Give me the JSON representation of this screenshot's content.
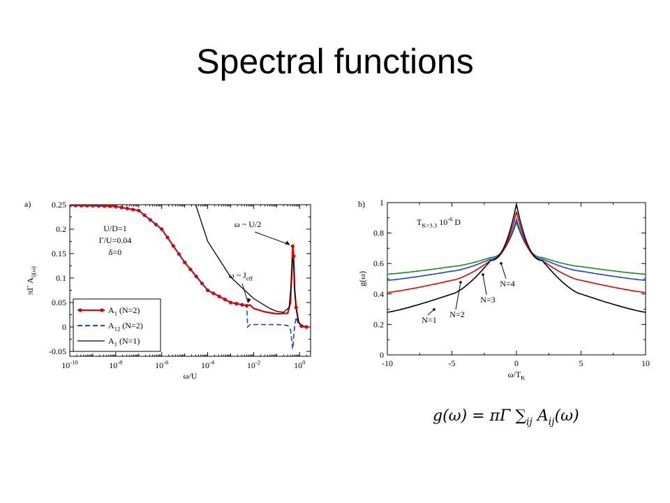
{
  "slide": {
    "title": "Spectral functions"
  },
  "chart_data": [
    {
      "type": "line",
      "panel_label": "a)",
      "xlabel": "ω/U",
      "ylabel": "πΓ A_ij(ω)",
      "xscale": "log",
      "xlim": [
        1e-10,
        3
      ],
      "ylim": [
        -0.06,
        0.25
      ],
      "x_ticks": [
        "10^-10",
        "10^-8",
        "10^-6",
        "10^-4",
        "10^-2",
        "10^0"
      ],
      "y_ticks": [
        "-0.05",
        "0",
        "0.05",
        "0.1",
        "0.15",
        "0.2",
        "0.25"
      ],
      "params": [
        "U/D=1",
        "Γ/U=0.04",
        "δ=0"
      ],
      "annotations": [
        {
          "text": "ω ~ U/2",
          "x": 0.5,
          "y": 0.165
        },
        {
          "text": "ω ~ J_eff",
          "x": 0.005,
          "y": 0.045
        }
      ],
      "legend": "bottom-left",
      "series": [
        {
          "name": "A_1 (N=2)",
          "color": "#e00000",
          "style": "solid-dots",
          "points": [
            [
              1e-10,
              0.2485
            ],
            [
              1e-09,
              0.248
            ],
            [
              1e-08,
              0.2465
            ],
            [
              1e-07,
              0.238
            ],
            [
              1e-06,
              0.2
            ],
            [
              1e-05,
              0.132
            ],
            [
              0.0001,
              0.075
            ],
            [
              0.001,
              0.05
            ],
            [
              0.005,
              0.0435
            ],
            [
              0.007,
              0.045
            ],
            [
              0.01,
              0.038
            ],
            [
              0.03,
              0.031
            ],
            [
              0.1,
              0.027
            ],
            [
              0.3,
              0.028
            ],
            [
              0.4,
              0.05
            ],
            [
              0.5,
              0.165
            ],
            [
              0.55,
              0.145
            ],
            [
              0.6,
              0.08
            ],
            [
              0.7,
              0.04
            ],
            [
              0.9,
              0.01
            ],
            [
              1.2,
              0.002
            ],
            [
              2,
              0.0
            ]
          ]
        },
        {
          "name": "A_12 (N=2)",
          "color": "#1f3fd8",
          "style": "dashed",
          "points": [
            [
              1e-10,
              0.2485
            ],
            [
              1e-09,
              0.248
            ],
            [
              1e-08,
              0.2465
            ],
            [
              1e-07,
              0.238
            ],
            [
              1e-06,
              0.2
            ],
            [
              1e-05,
              0.132
            ],
            [
              0.0001,
              0.075
            ],
            [
              0.001,
              0.05
            ],
            [
              0.005,
              0.0435
            ],
            [
              0.0055,
              0.0
            ],
            [
              0.007,
              0.005
            ],
            [
              0.02,
              0.005
            ],
            [
              0.1,
              0.005
            ],
            [
              0.3,
              0.003
            ],
            [
              0.4,
              -0.005
            ],
            [
              0.5,
              -0.045
            ],
            [
              0.6,
              0.0
            ],
            [
              0.7,
              0.02
            ],
            [
              0.9,
              0.005
            ],
            [
              1.2,
              0.0
            ],
            [
              2,
              0.0
            ]
          ]
        },
        {
          "name": "A_1 (N=1)",
          "color": "#000000",
          "style": "solid",
          "points": [
            [
              3e-05,
              0.25
            ],
            [
              0.0001,
              0.175
            ],
            [
              0.001,
              0.102
            ],
            [
              0.01,
              0.058
            ],
            [
              0.05,
              0.038
            ],
            [
              0.1,
              0.032
            ],
            [
              0.2,
              0.03
            ],
            [
              0.35,
              0.04
            ],
            [
              0.45,
              0.1
            ],
            [
              0.5,
              0.145
            ],
            [
              0.55,
              0.13
            ],
            [
              0.6,
              0.08
            ],
            [
              0.7,
              0.04
            ],
            [
              0.9,
              0.01
            ],
            [
              1.2,
              0.002
            ],
            [
              2,
              0.0
            ]
          ]
        }
      ]
    },
    {
      "type": "line",
      "panel_label": "b)",
      "xlabel": "ω/T_K",
      "ylabel": "g(ω)",
      "xlim": [
        -10,
        10
      ],
      "ylim": [
        0,
        1
      ],
      "x_ticks": [
        "-10",
        "-5",
        "0",
        "5",
        "10"
      ],
      "y_ticks": [
        "0",
        "0.2",
        "0.4",
        "0.6",
        "0.8",
        "1"
      ],
      "annotation": "T_K=3.3 10^-6 D",
      "series": [
        {
          "name": "N=1",
          "color": "#000000",
          "values_at_x": {
            "x": [
              -10,
              -5,
              -2,
              0,
              2,
              5,
              10
            ],
            "y": [
              0.28,
              0.4,
              0.62,
              0.99,
              0.62,
              0.4,
              0.28
            ]
          }
        },
        {
          "name": "N=2",
          "color": "#e00000",
          "values_at_x": {
            "x": [
              -10,
              -5,
              -2,
              0,
              2,
              5,
              10
            ],
            "y": [
              0.41,
              0.49,
              0.62,
              0.94,
              0.62,
              0.49,
              0.41
            ]
          }
        },
        {
          "name": "N=3",
          "color": "#1f3fd8",
          "values_at_x": {
            "x": [
              -10,
              -5,
              -2,
              0,
              2,
              5,
              10
            ],
            "y": [
              0.49,
              0.55,
              0.63,
              0.89,
              0.63,
              0.55,
              0.49
            ]
          }
        },
        {
          "name": "N=4",
          "color": "#1a8a1a",
          "values_at_x": {
            "x": [
              -10,
              -5,
              -2,
              0,
              2,
              5,
              10
            ],
            "y": [
              0.53,
              0.58,
              0.64,
              0.87,
              0.64,
              0.58,
              0.53
            ]
          }
        }
      ]
    }
  ],
  "formula": "g(ω) = πΓ Σ_ij A_ij(ω)"
}
